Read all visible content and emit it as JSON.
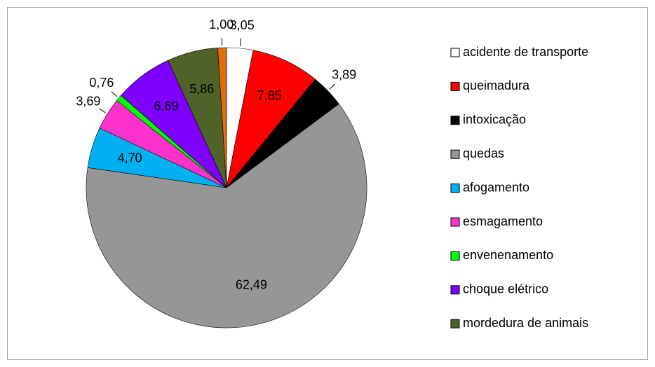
{
  "chart_data": {
    "type": "pie",
    "categories": [
      "acidente de transporte",
      "queimadura",
      "intoxicação",
      "quedas",
      "afogamento",
      "esmagamento",
      "envenenamento",
      "choque elétrico",
      "mordedura de animais",
      null
    ],
    "values": [
      3.05,
      7.85,
      3.89,
      62.49,
      4.7,
      3.69,
      0.76,
      6.69,
      5.86,
      1.0
    ],
    "value_labels": [
      "3,05",
      "7,85",
      "3,89",
      "62,49",
      "4,70",
      "3,69",
      "0,76",
      "6,69",
      "5,86",
      "1,00"
    ],
    "colors": [
      "#ffffff",
      "#ff0000",
      "#000000",
      "#969696",
      "#00b0f0",
      "#ff33cc",
      "#00ff00",
      "#7f00ff",
      "#4f6228",
      "#e46c0a"
    ],
    "legend": "right"
  }
}
